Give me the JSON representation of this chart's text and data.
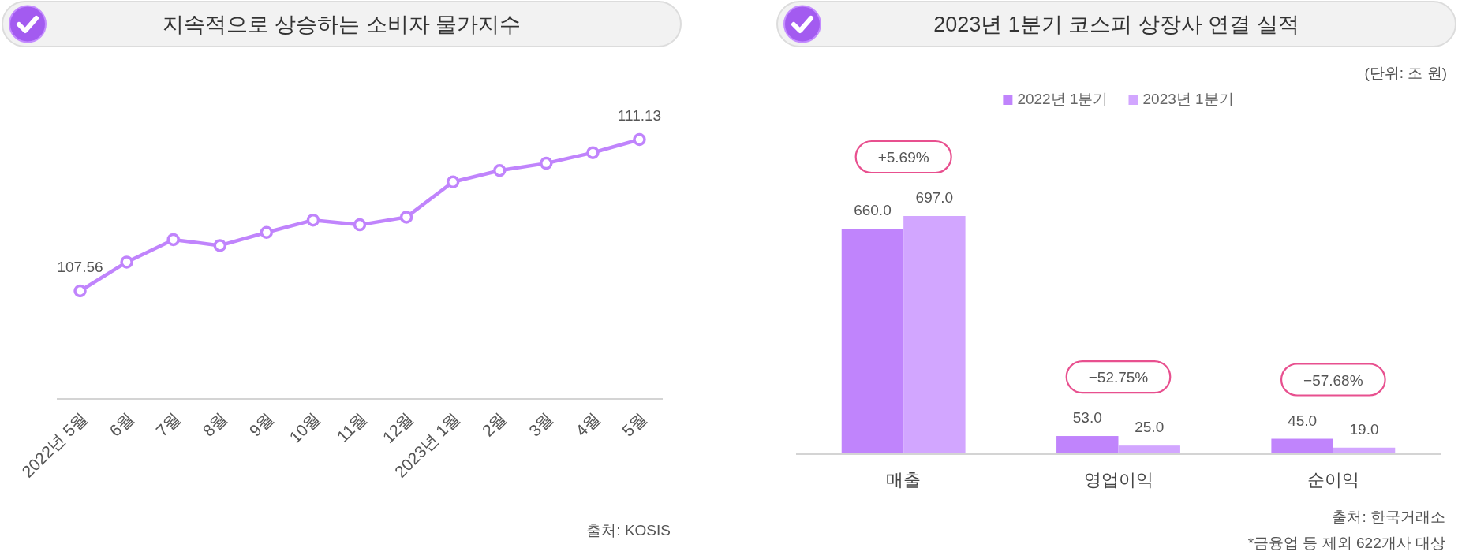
{
  "chart_data": [
    {
      "type": "line",
      "title": "지속적으로 상승하는 소비자 물가지수",
      "categories": [
        "2022년 5월",
        "6월",
        "7월",
        "8월",
        "9월",
        "10월",
        "11월",
        "12월",
        "2023년 1월",
        "2월",
        "3월",
        "4월",
        "5월"
      ],
      "values": [
        107.56,
        108.24,
        108.77,
        108.63,
        108.94,
        109.23,
        109.12,
        109.3,
        110.13,
        110.4,
        110.57,
        110.82,
        111.13
      ],
      "value_labels": [
        "107.56",
        null,
        null,
        null,
        null,
        null,
        null,
        null,
        null,
        null,
        null,
        null,
        "111.13"
      ],
      "color": "#c084fc",
      "marker": "circle",
      "tick_labels": "x",
      "annotations": [
        "출처: KOSIS"
      ]
    },
    {
      "type": "bar",
      "title": "2023년 1분기 코스피 상장사 연결 실적",
      "ylabel": "(단위: 조 원)",
      "categories": [
        "매출",
        "영업이익",
        "순이익"
      ],
      "series": [
        {
          "name": "2022년 1분기",
          "color": "#c084fc",
          "values": [
            660,
            53,
            45
          ],
          "value_labels": [
            "660.0",
            "53.0",
            "45.0"
          ]
        },
        {
          "name": "2023년 1분기",
          "color": "#d2a6ff",
          "values": [
            697,
            25,
            19
          ],
          "value_labels": [
            "697.0",
            "25.0",
            "19.0"
          ]
        }
      ],
      "legend": "top",
      "tick_labels": "x",
      "annotations": [
        "+5.69%",
        "−52.75%",
        "−57.68%",
        "출처: 한국거래소",
        "*금융업 등 제외 622개사 대상"
      ]
    }
  ]
}
